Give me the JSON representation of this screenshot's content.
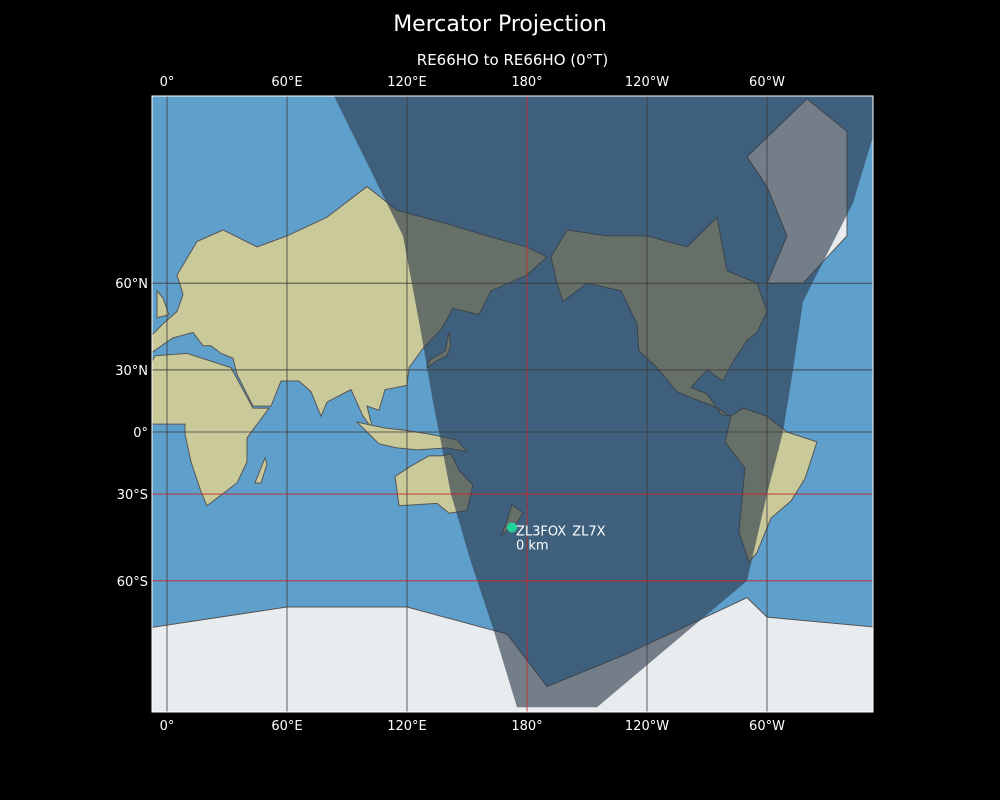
{
  "title": "Mercator Projection",
  "subtitle": "RE66HO to RE66HO (0°T)",
  "projection": "Mercator",
  "lon_ticks": [
    {
      "lon": 0,
      "label": "0°"
    },
    {
      "lon": 60,
      "label": "60°E"
    },
    {
      "lon": 120,
      "label": "120°E"
    },
    {
      "lon": 180,
      "label": "180°"
    },
    {
      "lon": 240,
      "label": "120°W"
    },
    {
      "lon": 300,
      "label": "60°W"
    }
  ],
  "lat_ticks": [
    {
      "lat": 60,
      "label": "60°N"
    },
    {
      "lat": 30,
      "label": "30°N"
    },
    {
      "lat": 0,
      "label": "0°"
    },
    {
      "lat": -30,
      "label": "30°S"
    },
    {
      "lat": -60,
      "label": "60°S"
    }
  ],
  "marker": {
    "label_a": "ZL3FOX",
    "label_b": "ZL7X",
    "distance": "0 km",
    "lon": 172.5,
    "lat": -43.5,
    "color": "#1fd39a"
  },
  "colors": {
    "ocean": "#5f9fcc",
    "land": "#c9c99a",
    "night": "#2b3a4a",
    "grid": "#3a3a3a",
    "highlight_grid": "#cc2222"
  }
}
